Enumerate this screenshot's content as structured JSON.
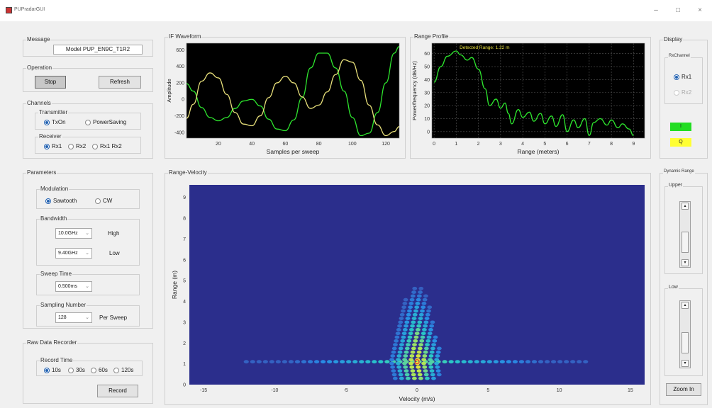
{
  "window": {
    "title": "PUPradarGUI",
    "min": "–",
    "max": "□",
    "close": "×"
  },
  "message": {
    "title": "Message",
    "text": "Model  PUP_EN9C_T1R2"
  },
  "operation": {
    "title": "Operation",
    "stop": "Stop",
    "refresh": "Refresh"
  },
  "channels": {
    "title": "Channels",
    "transmitter": {
      "title": "Transmitter",
      "options": [
        "TxOn",
        "PowerSaving"
      ]
    },
    "receiver": {
      "title": "Receiver",
      "options": [
        "Rx1",
        "Rx2",
        "Rx1 Rx2"
      ]
    }
  },
  "parameters": {
    "title": "Parameters",
    "modulation": {
      "title": "Modulation",
      "options": [
        "Sawtooth",
        "CW"
      ]
    },
    "bandwidth": {
      "title": "Bandwidth",
      "high_value": "10.0GHz",
      "high_label": "High",
      "low_value": "9.40GHz",
      "low_label": "Low"
    },
    "sweep_time": {
      "title": "Sweep Time",
      "value": "0.500ms"
    },
    "sampling": {
      "title": "Sampling Number",
      "value": "128",
      "unit": "Per Sweep"
    }
  },
  "recorder": {
    "title": "Raw Data Recorder",
    "record_time": {
      "title": "Record Time",
      "options": [
        "10s",
        "30s",
        "60s",
        "120s"
      ]
    },
    "record": "Record"
  },
  "display": {
    "title": "Display",
    "rxchannel": {
      "title": "RxChannel",
      "options": [
        "Rx1",
        "Rx2"
      ]
    },
    "i_label": "I",
    "q_label": "Q",
    "colors": {
      "i": "#22dd22",
      "q": "#ffff33"
    }
  },
  "dynamic_range": {
    "title": "Dynamic Range",
    "upper": "Upper",
    "lower": "Low",
    "zoom": "Zoom In"
  },
  "charts": {
    "if_title": "IF Waveform",
    "rp_title": "Range Profile",
    "rv_title": "Range-Velocity"
  },
  "chart_data": [
    {
      "type": "line",
      "title": "",
      "xlabel": "Samples per sweep",
      "ylabel": "Amplitude",
      "xlim": [
        1,
        128
      ],
      "ylim": [
        -470,
        680
      ],
      "xticks": [
        20,
        40,
        60,
        80,
        100,
        120
      ],
      "yticks": [
        600,
        400,
        200,
        0,
        -200,
        -400
      ],
      "grid": false,
      "background": "#000000",
      "series": [
        {
          "color": "#2ee62e",
          "x": [
            1,
            5,
            10,
            15,
            20,
            25,
            30,
            35,
            40,
            45,
            50,
            55,
            60,
            65,
            70,
            75,
            80,
            85,
            90,
            95,
            100,
            105,
            110,
            115,
            120,
            125,
            128
          ],
          "y": [
            190,
            100,
            -100,
            -220,
            -260,
            -220,
            -110,
            -20,
            0,
            -80,
            -240,
            -360,
            -380,
            -250,
            20,
            380,
            560,
            560,
            380,
            100,
            -220,
            -440,
            -410,
            -160,
            200,
            560,
            640
          ]
        },
        {
          "color": "#e8e07a",
          "x": [
            1,
            5,
            10,
            15,
            20,
            25,
            30,
            35,
            40,
            45,
            50,
            55,
            60,
            65,
            70,
            75,
            80,
            85,
            90,
            95,
            100,
            105,
            110,
            115,
            120,
            125,
            128
          ],
          "y": [
            -230,
            -60,
            220,
            320,
            260,
            60,
            -160,
            -300,
            -320,
            -200,
            20,
            200,
            280,
            200,
            30,
            -110,
            -70,
            90,
            300,
            480,
            450,
            230,
            -70,
            -310,
            -440,
            -390,
            -330
          ]
        }
      ]
    },
    {
      "type": "line",
      "title": "",
      "xlabel": "Range (meters)",
      "ylabel": "Power/frequency (dB/Hz)",
      "annotation": "Detected Range: 1.22 m",
      "xlim": [
        -0.1,
        9.5
      ],
      "ylim": [
        -5,
        68
      ],
      "xticks": [
        0,
        1,
        2,
        3,
        4,
        5,
        6,
        7,
        8,
        9
      ],
      "yticks": [
        0,
        10,
        20,
        30,
        40,
        50,
        60
      ],
      "grid": true,
      "background": "#000000",
      "series": [
        {
          "color": "#2ee62e",
          "x": [
            0,
            0.3,
            0.6,
            1.0,
            1.2,
            1.5,
            1.7,
            2.0,
            2.3,
            2.5,
            2.8,
            3.0,
            3.2,
            3.35,
            3.5,
            3.8,
            4.0,
            4.3,
            4.5,
            4.8,
            5.0,
            5.3,
            5.5,
            5.8,
            6.0,
            6.3,
            6.5,
            6.8,
            7.0,
            7.2,
            7.5,
            7.8,
            8.0,
            8.3,
            8.5,
            8.8,
            9.0
          ],
          "y": [
            38,
            50,
            58,
            62,
            59,
            55,
            57,
            48,
            33,
            20,
            25,
            18,
            22,
            14,
            6,
            17,
            11,
            15,
            8,
            14,
            6,
            12,
            4,
            13,
            0,
            9,
            3,
            10,
            -3,
            7,
            10,
            5,
            9,
            3,
            6,
            2,
            -3
          ]
        }
      ]
    },
    {
      "type": "heatmap",
      "title": "",
      "xlabel": "Velocity (m/s)",
      "ylabel": "Range (m)",
      "xlim": [
        -16,
        16
      ],
      "ylim": [
        0,
        9.6
      ],
      "xticks": [
        -15,
        -10,
        -5,
        0,
        5,
        10,
        15
      ],
      "yticks": [
        0,
        1,
        2,
        3,
        4,
        5,
        6,
        7,
        8,
        9
      ],
      "background": "#2b2e8c",
      "peak": {
        "velocity": 0,
        "range": 1.1
      },
      "description_values": {
        "peak_range_m": 1.1,
        "peak_velocity_mps": 0
      }
    }
  ]
}
